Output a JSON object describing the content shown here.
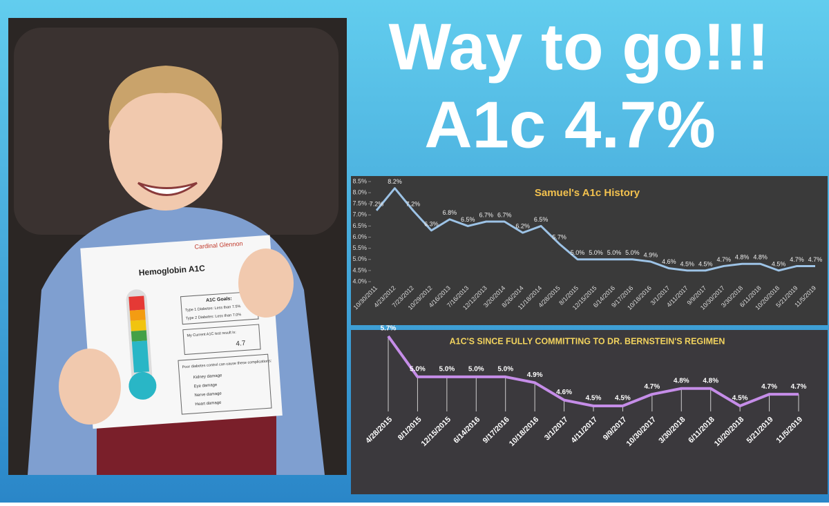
{
  "headline": {
    "line1": "Way to go!!!",
    "line2": "A1c 4.7%"
  },
  "photo_sheet": {
    "brand": "Cardinal Glennon",
    "title": "Hemoglobin A1C",
    "goals_title": "A1C Goals:",
    "goal1": "Type 1 Diabetes: Less than 7.5%",
    "goal2": "Type 2 Diabetes: Less than 7.0%",
    "result_title": "My Current A1C test result is:",
    "result": "4.7",
    "warning": "Poor diabetes control can cause these complications:",
    "complications": [
      "Kidney damage",
      "Eye damage",
      "Nerve damage",
      "Heart damage"
    ]
  },
  "chart_data": [
    {
      "type": "line",
      "title": "Samuel's A1c History",
      "color": "#9dc3e6",
      "categories": [
        "10/30/2011",
        "4/23/2012",
        "7/23/2012",
        "10/29/2012",
        "4/16/2013",
        "7/16/2013",
        "12/12/2013",
        "3/20/2014",
        "8/26/2014",
        "11/18/2014",
        "4/28/2015",
        "8/1/2015",
        "12/15/2015",
        "6/14/2016",
        "9/17/2016",
        "10/18/2016",
        "3/1/2017",
        "4/11/2017",
        "9/9/2017",
        "10/30/2017",
        "3/30/2018",
        "6/11/2018",
        "10/20/2018",
        "5/21/2019",
        "11/5/2019"
      ],
      "values": [
        7.2,
        8.2,
        7.2,
        6.3,
        6.8,
        6.5,
        6.7,
        6.7,
        6.2,
        6.5,
        5.7,
        5.0,
        5.0,
        5.0,
        5.0,
        4.9,
        4.6,
        4.5,
        4.5,
        4.7,
        4.8,
        4.8,
        4.5,
        4.7,
        4.7
      ],
      "value_labels": [
        "7.2%",
        "8.2%",
        "7.2%",
        "6.3%",
        "6.8%",
        "6.5%",
        "6.7%",
        "6.7%",
        "6.2%",
        "6.5%",
        "5.7%",
        "5.0%",
        "5.0%",
        "5.0%",
        "5.0%",
        "4.9%",
        "4.6%",
        "4.5%",
        "4.5%",
        "4.7%",
        "4.8%",
        "4.8%",
        "4.5%",
        "4.7%",
        "4.7%"
      ],
      "ylim": [
        4.0,
        8.5
      ],
      "yticks": [
        {
          "value": 4.0,
          "label": "4.0%"
        },
        {
          "value": 4.5,
          "label": "4.5%"
        },
        {
          "value": 5.0,
          "label": "5.0%"
        },
        {
          "value": 5.5,
          "label": "5.5%"
        },
        {
          "value": 6.0,
          "label": "6.0%"
        },
        {
          "value": 6.5,
          "label": "6.5%"
        },
        {
          "value": 7.0,
          "label": "7.0%"
        },
        {
          "value": 7.5,
          "label": "7.5%"
        },
        {
          "value": 8.0,
          "label": "8.0%"
        },
        {
          "value": 8.5,
          "label": "8.5%"
        }
      ]
    },
    {
      "type": "line",
      "title": "A1C'S SINCE FULLY COMMITTING TO DR. BERNSTEIN'S REGIMEN",
      "color": "#c58de8",
      "categories": [
        "4/28/2015",
        "8/1/2015",
        "12/15/2015",
        "6/14/2016",
        "9/17/2016",
        "10/18/2016",
        "3/1/2017",
        "4/11/2017",
        "9/9/2017",
        "10/30/2017",
        "3/30/2018",
        "6/11/2018",
        "10/20/2018",
        "5/21/2019",
        "11/5/2019"
      ],
      "values": [
        5.7,
        5.0,
        5.0,
        5.0,
        5.0,
        4.9,
        4.6,
        4.5,
        4.5,
        4.7,
        4.8,
        4.8,
        4.5,
        4.7,
        4.7
      ],
      "value_labels": [
        "5.7%",
        "5.0%",
        "5.0%",
        "5.0%",
        "5.0%",
        "4.9%",
        "4.6%",
        "4.5%",
        "4.5%",
        "4.7%",
        "4.8%",
        "4.8%",
        "4.5%",
        "4.7%",
        "4.7%"
      ]
    }
  ]
}
